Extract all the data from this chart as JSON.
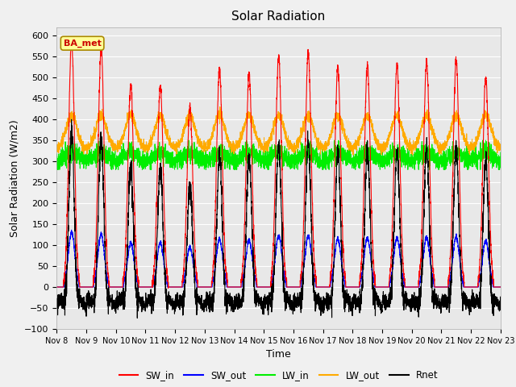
{
  "title": "Solar Radiation",
  "xlabel": "Time",
  "ylabel": "Solar Radiation (W/m2)",
  "ylim": [
    -100,
    620
  ],
  "yticks": [
    -100,
    -50,
    0,
    50,
    100,
    150,
    200,
    250,
    300,
    350,
    400,
    450,
    500,
    550,
    600
  ],
  "x_tick_labels": [
    "Nov 8",
    "Nov 9",
    "Nov 10",
    "Nov 11",
    "Nov 12",
    "Nov 13",
    "Nov 14",
    "Nov 15",
    "Nov 16",
    "Nov 17",
    "Nov 18",
    "Nov 19",
    "Nov 20",
    "Nov 21",
    "Nov 22",
    "Nov 23"
  ],
  "colors": {
    "SW_in": "#ff0000",
    "SW_out": "#0000ff",
    "LW_in": "#00ee00",
    "LW_out": "#ffaa00",
    "Rnet": "#000000"
  },
  "fig_bg_color": "#f0f0f0",
  "plot_bg_color": "#e8e8e8",
  "annotation_text": "BA_met",
  "annotation_bg": "#ffff99",
  "annotation_border": "#cc0000",
  "grid_color": "#ffffff",
  "n_days": 15,
  "pts_per_day": 288,
  "figsize": [
    6.4,
    4.8
  ],
  "dpi": 100
}
